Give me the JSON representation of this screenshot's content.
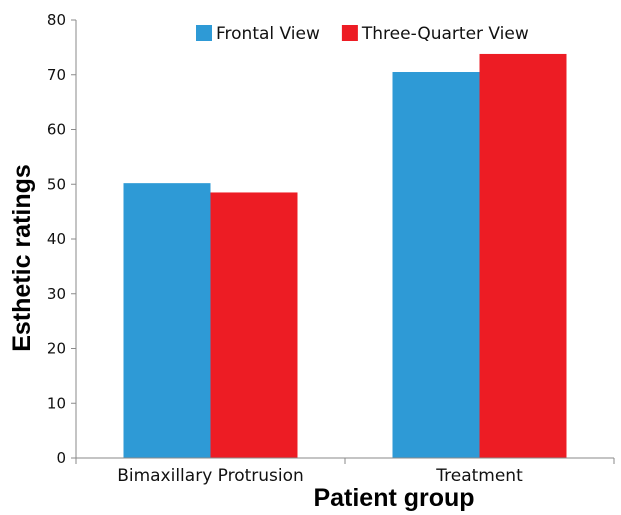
{
  "chart_data": {
    "type": "bar",
    "title": "",
    "xlabel": "Patient group",
    "ylabel": "Esthetic ratings",
    "categories": [
      "Bimaxillary Protrusion",
      "Treatment"
    ],
    "series": [
      {
        "name": "Frontal View",
        "color": "#2E9AD6",
        "values": [
          50.2,
          70.5
        ]
      },
      {
        "name": "Three-Quarter View",
        "color": "#ED1C24",
        "values": [
          48.5,
          73.8
        ]
      }
    ],
    "ylim": [
      0,
      80
    ],
    "yticks": [
      0,
      10,
      20,
      30,
      40,
      50,
      60,
      70,
      80
    ],
    "grid": false,
    "legend_position": "top"
  }
}
